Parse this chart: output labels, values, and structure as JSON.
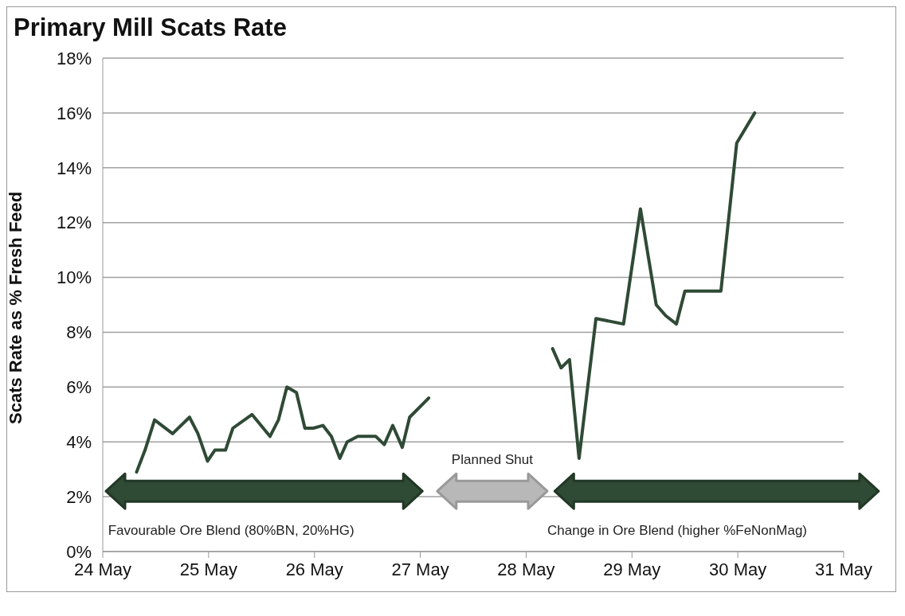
{
  "chart_data": {
    "type": "line",
    "title": "Primary Mill Scats Rate",
    "ylabel": "Scats Rate as % Fresh Feed",
    "xlim": [
      "--05-24",
      "--05-31"
    ],
    "xticks": [
      {
        "value": "--05-24",
        "label": "24 May"
      },
      {
        "value": "--05-25",
        "label": "25 May"
      },
      {
        "value": "--05-26",
        "label": "26 May"
      },
      {
        "value": "--05-27",
        "label": "27 May"
      },
      {
        "value": "--05-28",
        "label": "28 May"
      },
      {
        "value": "--05-29",
        "label": "29 May"
      },
      {
        "value": "--05-30",
        "label": "30 May"
      },
      {
        "value": "--05-31",
        "label": "31 May"
      }
    ],
    "ylim": [
      0,
      18
    ],
    "yticks": [
      {
        "value": 0,
        "label": "0%"
      },
      {
        "value": 2,
        "label": "2%"
      },
      {
        "value": 4,
        "label": "4%"
      },
      {
        "value": 6,
        "label": "6%"
      },
      {
        "value": 8,
        "label": "8%"
      },
      {
        "value": 10,
        "label": "10%"
      },
      {
        "value": 12,
        "label": "12%"
      },
      {
        "value": 14,
        "label": "14%"
      },
      {
        "value": 16,
        "label": "16%"
      },
      {
        "value": 18,
        "label": "18%"
      }
    ],
    "grid": "y",
    "marker": "none",
    "line_style": "solid",
    "series": [
      {
        "color": "#2f4a35",
        "x": [
          "--05-24T07:40",
          "--05-24T09:35",
          "--05-24T11:45",
          "--05-24T15:50",
          "--05-24T19:40",
          "--05-24T21:35",
          "--05-24T23:45",
          "--05-25T01:25",
          "--05-25T03:50",
          "--05-25T05:30",
          "--05-25T09:50",
          "--05-25T13:55",
          "--05-25T15:50",
          "--05-25T17:45",
          "--05-25T19:55",
          "--05-25T21:50",
          "--05-25T23:45",
          "--05-26T01:55",
          "--05-26T03:50",
          "--05-26T05:45",
          "--05-26T07:25",
          "--05-26T09:50",
          "--05-26T13:55",
          "--05-26T15:50",
          "--05-26T17:45",
          "--05-26T19:55",
          "--05-26T21:35",
          "--05-27T01:55"
        ],
        "values": [
          2.9,
          3.7,
          4.8,
          4.3,
          4.9,
          4.3,
          3.3,
          3.7,
          3.7,
          4.5,
          5.0,
          4.2,
          4.8,
          6.0,
          5.8,
          4.5,
          4.5,
          4.6,
          4.2,
          3.4,
          4.0,
          4.2,
          4.2,
          3.9,
          4.6,
          3.8,
          4.9,
          5.6
        ]
      },
      {
        "color": "#2f4a35",
        "x": [
          "--05-28T06:00",
          "--05-28T07:55",
          "--05-28T09:50",
          "--05-28T12:00",
          "--05-28T15:50",
          "--05-28T22:05",
          "--05-29T01:55",
          "--05-29T05:30",
          "--05-29T07:40",
          "--05-29T10:05",
          "--05-29T12:00",
          "--05-29T20:10",
          "--05-29T23:45",
          "--05-30T03:50"
        ],
        "values": [
          7.4,
          6.7,
          7.0,
          3.4,
          8.5,
          8.3,
          12.5,
          9.0,
          8.6,
          8.3,
          9.5,
          9.5,
          14.9,
          16.0
        ]
      }
    ],
    "annotations": [
      "Favourable Ore Blend (80%BN, 20%HG)",
      "Planned Shut",
      "Change in Ore Blend (higher %FeNonMag)"
    ]
  }
}
